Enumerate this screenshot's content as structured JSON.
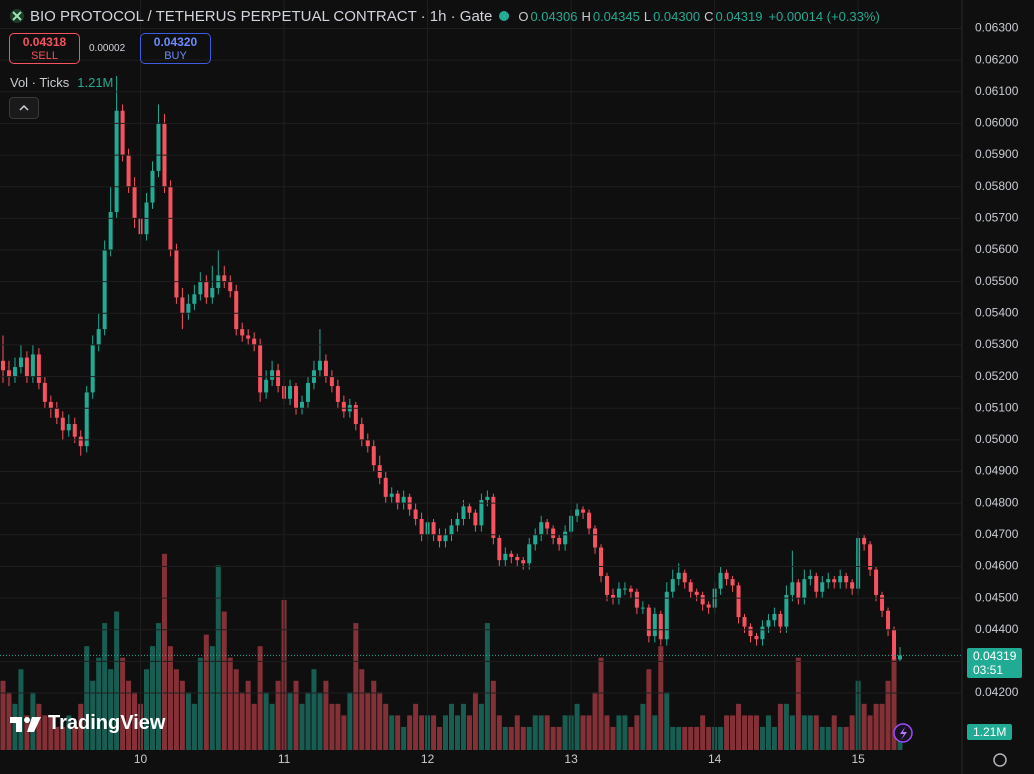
{
  "chart_data": {
    "type": "candlestick",
    "title": "BIO PROTOCOL / TETHERUS PERPETUAL CONTRACT · 1h · Gate",
    "ohlc_legend": [
      {
        "key": "O",
        "text": "0.04306"
      },
      {
        "key": "H",
        "text": "0.04345"
      },
      {
        "key": "L",
        "text": "0.04300"
      },
      {
        "key": "C",
        "text": "0.04319"
      }
    ],
    "change_label": "+0.00014 (+0.33%)",
    "sell": {
      "price": "0.04318",
      "label": "SELL"
    },
    "spread": "0.00002",
    "buy": {
      "price": "0.04320",
      "label": "BUY"
    },
    "volume_legend": {
      "name": "Vol · Ticks",
      "value": "1.21M"
    },
    "last_price_label": "0.04319",
    "countdown": "03:51",
    "brand": "TradingView",
    "up_color": "#22ab94",
    "down_color": "#f7525f",
    "grid": true,
    "categories": [
      null,
      null,
      null,
      null,
      null,
      null,
      null,
      null,
      null,
      null,
      null,
      null,
      null,
      null,
      null,
      null,
      null,
      null,
      null,
      null,
      null,
      null,
      null,
      "10",
      null,
      null,
      null,
      null,
      null,
      null,
      null,
      null,
      null,
      null,
      null,
      null,
      null,
      null,
      null,
      null,
      null,
      null,
      null,
      null,
      null,
      null,
      null,
      "11",
      null,
      null,
      null,
      null,
      null,
      null,
      null,
      null,
      null,
      null,
      null,
      null,
      null,
      null,
      null,
      null,
      null,
      null,
      null,
      null,
      null,
      null,
      null,
      "12",
      null,
      null,
      null,
      null,
      null,
      null,
      null,
      null,
      null,
      null,
      null,
      null,
      null,
      null,
      null,
      null,
      null,
      null,
      null,
      null,
      null,
      null,
      null,
      "13",
      null,
      null,
      null,
      null,
      null,
      null,
      null,
      null,
      null,
      null,
      null,
      null,
      null,
      null,
      null,
      null,
      null,
      null,
      null,
      null,
      null,
      null,
      null,
      "14",
      null,
      null,
      null,
      null,
      null,
      null,
      null,
      null,
      null,
      null,
      null,
      null,
      null,
      null,
      null,
      null,
      null,
      null,
      null,
      null,
      null,
      null,
      null,
      "15",
      null,
      null,
      null,
      null,
      null,
      null,
      null
    ],
    "open": [
      0.0525,
      0.0522,
      0.052,
      0.0523,
      0.0526,
      0.052,
      0.0527,
      0.0518,
      0.0512,
      0.051,
      0.0507,
      0.0503,
      0.0505,
      0.0501,
      0.0498,
      0.0515,
      0.053,
      0.0535,
      0.056,
      0.0572,
      0.0604,
      0.059,
      0.058,
      0.057,
      0.0565,
      0.0575,
      0.0585,
      0.06,
      0.058,
      0.056,
      0.0545,
      0.054,
      0.0543,
      0.0546,
      0.055,
      0.0545,
      0.0548,
      0.0552,
      0.055,
      0.0547,
      0.0535,
      0.0533,
      0.0532,
      0.053,
      0.0515,
      0.0519,
      0.0522,
      0.0517,
      0.0513,
      0.0517,
      0.051,
      0.0512,
      0.0518,
      0.0522,
      0.0525,
      0.052,
      0.0517,
      0.0512,
      0.0509,
      0.0511,
      0.0505,
      0.05,
      0.0498,
      0.0492,
      0.0488,
      0.0482,
      0.0483,
      0.048,
      0.0482,
      0.0478,
      0.0475,
      0.047,
      0.0474,
      0.047,
      0.0468,
      0.047,
      0.0473,
      0.0475,
      0.0479,
      0.0477,
      0.0473,
      0.0481,
      0.0482,
      0.0469,
      0.0462,
      0.0464,
      0.0463,
      0.0462,
      0.0461,
      0.0467,
      0.047,
      0.0474,
      0.0472,
      0.0469,
      0.0467,
      0.0471,
      0.0476,
      0.0478,
      0.0477,
      0.0472,
      0.0466,
      0.0457,
      0.0451,
      0.045,
      0.0453,
      0.0453,
      0.0452,
      0.0447,
      0.0447,
      0.0438,
      0.0445,
      0.0437,
      0.0452,
      0.0456,
      0.0458,
      0.0455,
      0.0452,
      0.0451,
      0.0448,
      0.0447,
      0.0453,
      0.0458,
      0.0456,
      0.0454,
      0.0444,
      0.0441,
      0.0438,
      0.0437,
      0.0441,
      0.0443,
      0.0445,
      0.0441,
      0.0451,
      0.0455,
      0.045,
      0.0456,
      0.0457,
      0.0452,
      0.0455,
      0.0456,
      0.0455,
      0.0457,
      0.0455,
      0.0453,
      0.0469,
      0.0467,
      0.0459,
      0.0451,
      0.0446,
      0.044,
      0.04306
    ],
    "high": [
      0.0533,
      0.0525,
      0.0526,
      0.053,
      0.0528,
      0.053,
      0.0529,
      0.052,
      0.0514,
      0.0512,
      0.0509,
      0.0508,
      0.0507,
      0.0503,
      0.0517,
      0.0533,
      0.054,
      0.0563,
      0.058,
      0.0615,
      0.0606,
      0.0592,
      0.0583,
      0.0573,
      0.0578,
      0.0588,
      0.0606,
      0.0603,
      0.0582,
      0.0562,
      0.0548,
      0.0546,
      0.0549,
      0.0553,
      0.0552,
      0.0555,
      0.056,
      0.0555,
      0.0552,
      0.0549,
      0.0537,
      0.0535,
      0.0534,
      0.0532,
      0.0522,
      0.0525,
      0.0524,
      0.0519,
      0.0519,
      0.0518,
      0.0514,
      0.052,
      0.0525,
      0.0535,
      0.0527,
      0.0522,
      0.0519,
      0.0514,
      0.0513,
      0.0512,
      0.0507,
      0.0502,
      0.05,
      0.0495,
      0.049,
      0.0485,
      0.0484,
      0.0484,
      0.0483,
      0.048,
      0.0477,
      0.0476,
      0.0475,
      0.0472,
      0.0472,
      0.0475,
      0.0477,
      0.0481,
      0.048,
      0.0478,
      0.0483,
      0.0484,
      0.0483,
      0.047,
      0.0466,
      0.0465,
      0.0464,
      0.0463,
      0.0469,
      0.0472,
      0.0476,
      0.0475,
      0.0473,
      0.047,
      0.0473,
      0.0478,
      0.048,
      0.0479,
      0.0478,
      0.0473,
      0.0467,
      0.0458,
      0.0453,
      0.0455,
      0.0455,
      0.0454,
      0.0453,
      0.0449,
      0.0448,
      0.0447,
      0.0446,
      0.0455,
      0.0459,
      0.0461,
      0.0459,
      0.0456,
      0.0453,
      0.0452,
      0.0449,
      0.0455,
      0.046,
      0.0459,
      0.0457,
      0.0455,
      0.0445,
      0.0442,
      0.0439,
      0.0443,
      0.0445,
      0.0447,
      0.0446,
      0.0454,
      0.0465,
      0.0456,
      0.0459,
      0.0459,
      0.0458,
      0.0457,
      0.0458,
      0.0457,
      0.0459,
      0.0458,
      0.0456,
      0.0471,
      0.047,
      0.0468,
      0.046,
      0.0452,
      0.0447,
      0.0441,
      0.04345
    ],
    "low": [
      0.0518,
      0.0517,
      0.0518,
      0.0521,
      0.0518,
      0.0518,
      0.0516,
      0.051,
      0.0507,
      0.0505,
      0.05,
      0.0501,
      0.0499,
      0.0495,
      0.0496,
      0.0513,
      0.0528,
      0.0533,
      0.0558,
      0.057,
      0.0588,
      0.0578,
      0.0567,
      0.056,
      0.0563,
      0.0573,
      0.0583,
      0.0578,
      0.0558,
      0.0543,
      0.0535,
      0.0538,
      0.0541,
      0.0544,
      0.0543,
      0.0543,
      0.0546,
      0.0548,
      0.0545,
      0.0533,
      0.0531,
      0.053,
      0.0528,
      0.0512,
      0.0513,
      0.0517,
      0.0515,
      0.0511,
      0.0511,
      0.0508,
      0.0508,
      0.051,
      0.0516,
      0.052,
      0.0518,
      0.0515,
      0.051,
      0.0507,
      0.0507,
      0.0503,
      0.0498,
      0.0496,
      0.049,
      0.0486,
      0.048,
      0.048,
      0.0478,
      0.0478,
      0.0476,
      0.0473,
      0.0468,
      0.0468,
      0.0468,
      0.0466,
      0.0466,
      0.0468,
      0.0471,
      0.0473,
      0.0475,
      0.0471,
      0.0471,
      0.0479,
      0.0467,
      0.046,
      0.046,
      0.0461,
      0.046,
      0.0459,
      0.0459,
      0.0465,
      0.0468,
      0.047,
      0.0467,
      0.0465,
      0.0465,
      0.0469,
      0.0474,
      0.0475,
      0.047,
      0.0464,
      0.0455,
      0.0449,
      0.0448,
      0.0448,
      0.0451,
      0.045,
      0.0445,
      0.0445,
      0.0436,
      0.0436,
      0.0435,
      0.0435,
      0.045,
      0.0454,
      0.0453,
      0.045,
      0.0449,
      0.0446,
      0.0445,
      0.0445,
      0.0451,
      0.0454,
      0.0452,
      0.0442,
      0.0439,
      0.0436,
      0.0435,
      0.0435,
      0.0439,
      0.0441,
      0.0439,
      0.0439,
      0.0449,
      0.0448,
      0.0448,
      0.0454,
      0.045,
      0.045,
      0.0453,
      0.0453,
      0.0453,
      0.0453,
      0.0451,
      0.0451,
      0.0465,
      0.0457,
      0.0449,
      0.0444,
      0.0438,
      0.043,
      0.043
    ],
    "close": [
      0.0522,
      0.052,
      0.0523,
      0.0526,
      0.052,
      0.0527,
      0.0518,
      0.0512,
      0.051,
      0.0507,
      0.0503,
      0.0505,
      0.0501,
      0.0498,
      0.0515,
      0.053,
      0.0535,
      0.056,
      0.0572,
      0.0604,
      0.059,
      0.058,
      0.057,
      0.0565,
      0.0575,
      0.0585,
      0.06,
      0.058,
      0.056,
      0.0545,
      0.054,
      0.0543,
      0.0546,
      0.055,
      0.0545,
      0.0548,
      0.0552,
      0.055,
      0.0547,
      0.0535,
      0.0533,
      0.0532,
      0.053,
      0.0515,
      0.0519,
      0.0522,
      0.0517,
      0.0513,
      0.0517,
      0.051,
      0.0512,
      0.0518,
      0.0522,
      0.0525,
      0.052,
      0.0517,
      0.0512,
      0.0509,
      0.0511,
      0.0505,
      0.05,
      0.0498,
      0.0492,
      0.0488,
      0.0482,
      0.0483,
      0.048,
      0.0482,
      0.0478,
      0.0475,
      0.047,
      0.0474,
      0.047,
      0.0468,
      0.047,
      0.0473,
      0.0475,
      0.0479,
      0.0477,
      0.0473,
      0.0481,
      0.0482,
      0.0469,
      0.0462,
      0.0464,
      0.0463,
      0.0462,
      0.0461,
      0.0467,
      0.047,
      0.0474,
      0.0472,
      0.0469,
      0.0467,
      0.0471,
      0.0476,
      0.0478,
      0.0477,
      0.0472,
      0.0466,
      0.0457,
      0.0451,
      0.045,
      0.0453,
      0.0453,
      0.0452,
      0.0447,
      0.0447,
      0.0438,
      0.0445,
      0.0437,
      0.0452,
      0.0456,
      0.0458,
      0.0455,
      0.0452,
      0.0451,
      0.0448,
      0.0447,
      0.0453,
      0.0458,
      0.0456,
      0.0454,
      0.0444,
      0.0441,
      0.0438,
      0.0437,
      0.0441,
      0.0443,
      0.0445,
      0.0441,
      0.0451,
      0.0455,
      0.045,
      0.0456,
      0.0457,
      0.0452,
      0.0455,
      0.0456,
      0.0455,
      0.0457,
      0.0455,
      0.0453,
      0.0469,
      0.0467,
      0.0459,
      0.0451,
      0.0446,
      0.044,
      0.04306,
      0.04319
    ],
    "volume": [
      6,
      5,
      4,
      7,
      3,
      5,
      4,
      3,
      3,
      2,
      2,
      3,
      2,
      4,
      9,
      6,
      8,
      11,
      7,
      12,
      8,
      6,
      5,
      4,
      7,
      9,
      11,
      17,
      9,
      7,
      6,
      5,
      4,
      8,
      10,
      9,
      16,
      12,
      8,
      7,
      5,
      6,
      4,
      9,
      5,
      4,
      6,
      13,
      5,
      6,
      4,
      5,
      7,
      5,
      6,
      4,
      4,
      3,
      5,
      11,
      7,
      5,
      6,
      5,
      4,
      3,
      3,
      2,
      3,
      4,
      3,
      3,
      3,
      2,
      3,
      4,
      3,
      4,
      3,
      5,
      4,
      11,
      6,
      3,
      2,
      2,
      3,
      2,
      2,
      3,
      3,
      3,
      2,
      2,
      3,
      3,
      4,
      3,
      3,
      5,
      8,
      3,
      2,
      3,
      3,
      2,
      3,
      4,
      7,
      3,
      9,
      5,
      2,
      2,
      2,
      2,
      2,
      3,
      2,
      2,
      2,
      3,
      3,
      4,
      3,
      3,
      3,
      2,
      3,
      2,
      4,
      4,
      3,
      8,
      3,
      3,
      3,
      2,
      2,
      3,
      2,
      2,
      3,
      6,
      4,
      3,
      4,
      4,
      6,
      8,
      1.21
    ],
    "ylim": [
      0.0402,
      0.0639
    ],
    "y2lim": [
      0,
      65
    ],
    "yticks": [
      {
        "value": 0.042,
        "label": "0.04200"
      },
      {
        "value": 0.043,
        "label": "0.04300"
      },
      {
        "value": 0.044,
        "label": "0.04400"
      },
      {
        "value": 0.045,
        "label": "0.04500"
      },
      {
        "value": 0.046,
        "label": "0.04600"
      },
      {
        "value": 0.047,
        "label": "0.04700"
      },
      {
        "value": 0.048,
        "label": "0.04800"
      },
      {
        "value": 0.049,
        "label": "0.04900"
      },
      {
        "value": 0.05,
        "label": "0.05000"
      },
      {
        "value": 0.051,
        "label": "0.05100"
      },
      {
        "value": 0.052,
        "label": "0.05200"
      },
      {
        "value": 0.053,
        "label": "0.05300"
      },
      {
        "value": 0.054,
        "label": "0.05400"
      },
      {
        "value": 0.055,
        "label": "0.05500"
      },
      {
        "value": 0.056,
        "label": "0.05600"
      },
      {
        "value": 0.057,
        "label": "0.05700"
      },
      {
        "value": 0.058,
        "label": "0.05800"
      },
      {
        "value": 0.059,
        "label": "0.05900"
      },
      {
        "value": 0.06,
        "label": "0.06000"
      },
      {
        "value": 0.061,
        "label": "0.06100"
      },
      {
        "value": 0.062,
        "label": "0.06200"
      },
      {
        "value": 0.063,
        "label": "0.06300"
      }
    ]
  }
}
